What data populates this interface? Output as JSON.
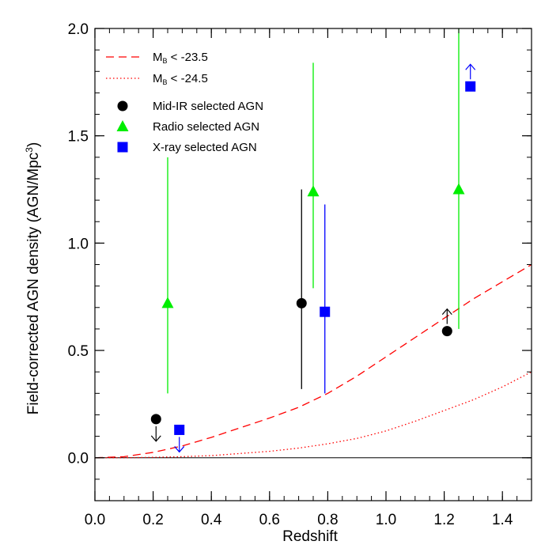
{
  "chart_data": {
    "type": "scatter",
    "title": "",
    "xlabel": "Redshift",
    "ylabel": "Field-corrected AGN density (AGN/Mpc",
    "ylabel_superscript": "3",
    "ylabel_suffix": ")",
    "xlim": [
      0.0,
      1.5
    ],
    "ylim": [
      -0.2,
      2.0
    ],
    "xticks": [
      "0.0",
      "0.2",
      "0.4",
      "0.6",
      "0.8",
      "1.0",
      "1.2",
      "1.4"
    ],
    "yticks": [
      "0.0",
      "0.5",
      "1.0",
      "1.5",
      "2.0"
    ],
    "grid": false,
    "legend_position": "top-left",
    "curves": [
      {
        "name_main": "M",
        "name_sub": "B",
        "name_rest": " < -23.5",
        "style": "dashed",
        "color": "#ff0000",
        "x": [
          0.0,
          0.1,
          0.2,
          0.3,
          0.4,
          0.5,
          0.6,
          0.7,
          0.8,
          0.9,
          1.0,
          1.1,
          1.2,
          1.3,
          1.4,
          1.5
        ],
        "y": [
          0.0,
          0.005,
          0.025,
          0.055,
          0.095,
          0.14,
          0.185,
          0.235,
          0.3,
          0.38,
          0.47,
          0.56,
          0.65,
          0.74,
          0.82,
          0.9
        ]
      },
      {
        "name_main": "M",
        "name_sub": "B",
        "name_rest": " < -24.5",
        "style": "dotted",
        "color": "#ff0000",
        "x": [
          0.0,
          0.1,
          0.2,
          0.3,
          0.4,
          0.5,
          0.6,
          0.7,
          0.8,
          0.9,
          1.0,
          1.1,
          1.2,
          1.3,
          1.4,
          1.5
        ],
        "y": [
          0.0,
          0.0,
          0.002,
          0.005,
          0.01,
          0.02,
          0.03,
          0.045,
          0.065,
          0.09,
          0.125,
          0.17,
          0.22,
          0.27,
          0.33,
          0.4
        ]
      }
    ],
    "series": [
      {
        "name": "Mid-IR selected AGN",
        "marker": "circle",
        "color": "#000000",
        "points": [
          {
            "x": 0.21,
            "y": 0.18,
            "limit": "upper"
          },
          {
            "x": 0.71,
            "y": 0.72,
            "err_low": 0.32,
            "err_high": 1.25
          },
          {
            "x": 1.21,
            "y": 0.59,
            "limit": "lower"
          }
        ]
      },
      {
        "name": "Radio selected AGN",
        "marker": "triangle",
        "color": "#00ee00",
        "points": [
          {
            "x": 0.25,
            "y": 0.72,
            "err_low": 0.3,
            "err_high": 1.4
          },
          {
            "x": 0.75,
            "y": 1.24,
            "err_low": 0.79,
            "err_high": 1.84
          },
          {
            "x": 1.25,
            "y": 1.25,
            "err_low": 0.6,
            "err_high": 2.0
          }
        ]
      },
      {
        "name": "X-ray selected AGN",
        "marker": "square",
        "color": "#0000ff",
        "points": [
          {
            "x": 0.29,
            "y": 0.13,
            "limit": "upper"
          },
          {
            "x": 0.79,
            "y": 0.68,
            "err_low": 0.3,
            "err_high": 1.18
          },
          {
            "x": 1.29,
            "y": 1.73,
            "limit": "lower"
          }
        ]
      }
    ]
  }
}
